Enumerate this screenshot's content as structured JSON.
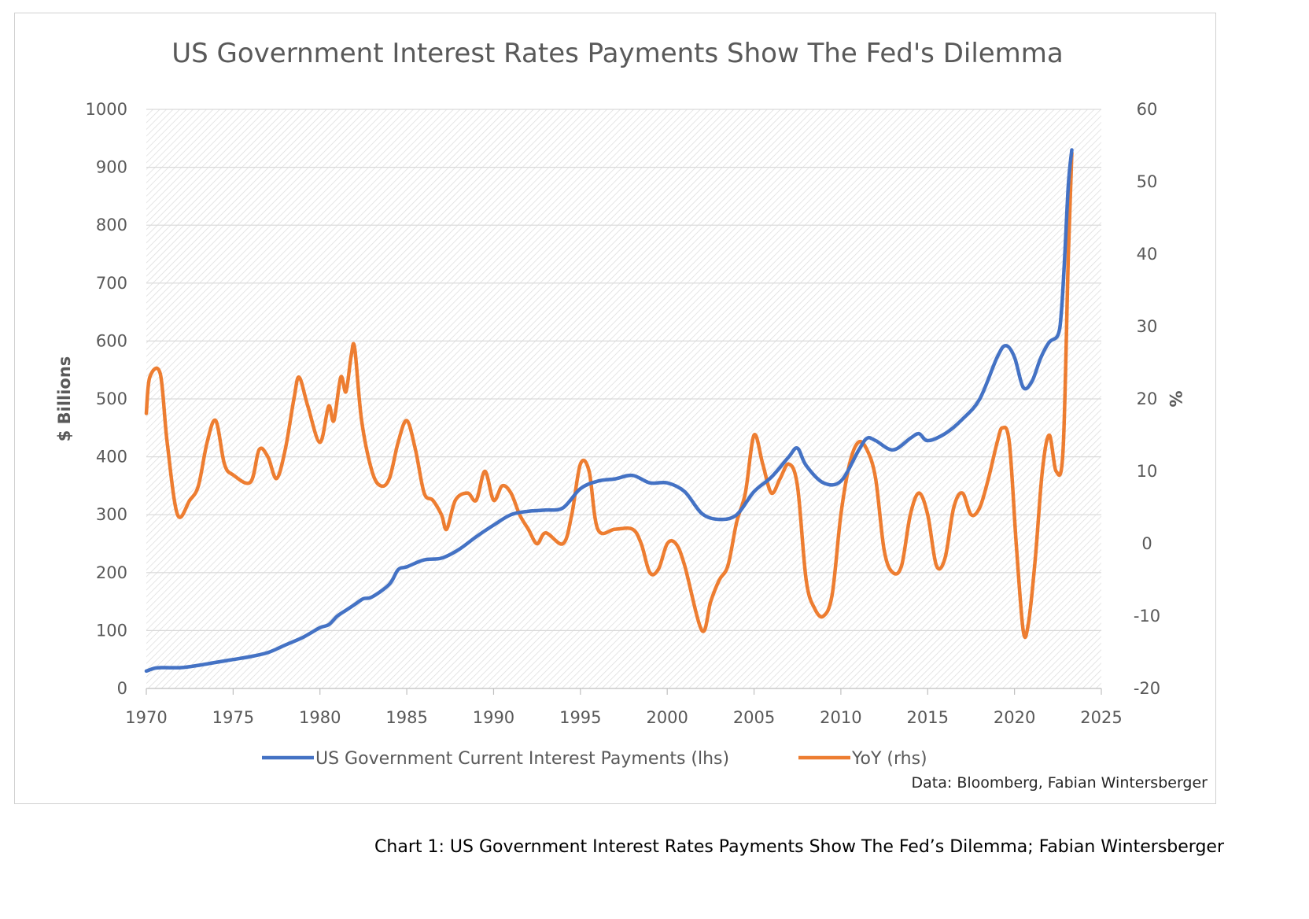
{
  "caption": "Chart 1: US Government Interest Rates Payments Show The Fed’s Dilemma; Fabian Wintersberger",
  "colors": {
    "series_lhs": "#4472C4",
    "series_rhs": "#ED7D31",
    "text": "#595959",
    "title": "#595959",
    "hatch": "#d9d9d9",
    "grid": "#d9d9d9"
  },
  "chart_data": {
    "type": "line",
    "title": "US Government Interest Rates Payments Show The Fed's Dilemma",
    "source": "Data: Bloomberg, Fabian Wintersberger",
    "xlim": [
      1970,
      2025
    ],
    "x_ticks": [
      "1970",
      "1975",
      "1980",
      "1985",
      "1990",
      "1995",
      "2000",
      "2005",
      "2010",
      "2015",
      "2020",
      "2025"
    ],
    "y_left": {
      "label": "$ Billions",
      "lim": [
        0,
        1000
      ],
      "ticks": [
        "0",
        "100",
        "200",
        "300",
        "400",
        "500",
        "600",
        "700",
        "800",
        "900",
        "1000"
      ]
    },
    "y_right": {
      "label": "%",
      "lim": [
        -20,
        60
      ],
      "ticks": [
        "-20",
        "-10",
        "0",
        "10",
        "20",
        "30",
        "40",
        "50",
        "60"
      ]
    },
    "grid": true,
    "legend_position": "bottom",
    "series": [
      {
        "name": "US Government Current Interest Payments (lhs)",
        "axis": "left",
        "color": "#4472C4",
        "points": [
          [
            1970,
            30
          ],
          [
            1970.5,
            35
          ],
          [
            1971,
            36
          ],
          [
            1972,
            36
          ],
          [
            1973,
            40
          ],
          [
            1974,
            45
          ],
          [
            1975,
            50
          ],
          [
            1976,
            55
          ],
          [
            1977,
            62
          ],
          [
            1978,
            75
          ],
          [
            1979,
            88
          ],
          [
            1980,
            105
          ],
          [
            1980.5,
            110
          ],
          [
            1981,
            125
          ],
          [
            1981.5,
            135
          ],
          [
            1982,
            145
          ],
          [
            1982.5,
            155
          ],
          [
            1983,
            158
          ],
          [
            1984,
            180
          ],
          [
            1984.5,
            205
          ],
          [
            1985,
            210
          ],
          [
            1986,
            222
          ],
          [
            1987,
            225
          ],
          [
            1988,
            240
          ],
          [
            1989,
            262
          ],
          [
            1990,
            282
          ],
          [
            1991,
            300
          ],
          [
            1992,
            306
          ],
          [
            1993,
            308
          ],
          [
            1994,
            312
          ],
          [
            1995,
            345
          ],
          [
            1996,
            358
          ],
          [
            1997,
            362
          ],
          [
            1998,
            368
          ],
          [
            1999,
            355
          ],
          [
            2000,
            355
          ],
          [
            2001,
            340
          ],
          [
            2002,
            302
          ],
          [
            2003,
            292
          ],
          [
            2004,
            300
          ],
          [
            2005,
            340
          ],
          [
            2006,
            365
          ],
          [
            2007,
            400
          ],
          [
            2007.5,
            415
          ],
          [
            2008,
            385
          ],
          [
            2009,
            355
          ],
          [
            2010,
            358
          ],
          [
            2011,
            410
          ],
          [
            2011.5,
            432
          ],
          [
            2012,
            428
          ],
          [
            2013,
            412
          ],
          [
            2014,
            432
          ],
          [
            2014.5,
            440
          ],
          [
            2015,
            428
          ],
          [
            2016,
            440
          ],
          [
            2017,
            465
          ],
          [
            2018,
            500
          ],
          [
            2019,
            572
          ],
          [
            2019.5,
            592
          ],
          [
            2020,
            572
          ],
          [
            2020.5,
            520
          ],
          [
            2021,
            530
          ],
          [
            2021.5,
            570
          ],
          [
            2022,
            598
          ],
          [
            2022.5,
            610
          ],
          [
            2022.7,
            650
          ],
          [
            2022.9,
            750
          ],
          [
            2023.1,
            870
          ],
          [
            2023.3,
            930
          ]
        ]
      },
      {
        "name": "YoY (rhs)",
        "axis": "right",
        "color": "#ED7D31",
        "points": [
          [
            1970,
            18
          ],
          [
            1970.2,
            23
          ],
          [
            1970.8,
            23.5
          ],
          [
            1971.2,
            14
          ],
          [
            1971.8,
            4
          ],
          [
            1972.5,
            6
          ],
          [
            1973,
            8
          ],
          [
            1973.5,
            14
          ],
          [
            1974,
            17
          ],
          [
            1974.5,
            11
          ],
          [
            1975,
            9.5
          ],
          [
            1976,
            8.5
          ],
          [
            1976.5,
            13
          ],
          [
            1977,
            12
          ],
          [
            1977.5,
            9
          ],
          [
            1978,
            13
          ],
          [
            1978.5,
            20
          ],
          [
            1978.8,
            23
          ],
          [
            1979.3,
            19
          ],
          [
            1980,
            14
          ],
          [
            1980.5,
            19
          ],
          [
            1980.8,
            17
          ],
          [
            1981.2,
            23
          ],
          [
            1981.5,
            21
          ],
          [
            1981.8,
            26
          ],
          [
            1982,
            27
          ],
          [
            1982.4,
            17
          ],
          [
            1983,
            10
          ],
          [
            1983.5,
            8
          ],
          [
            1984,
            9
          ],
          [
            1984.5,
            14
          ],
          [
            1985,
            17
          ],
          [
            1985.5,
            13
          ],
          [
            1986,
            7
          ],
          [
            1986.5,
            6
          ],
          [
            1987,
            4
          ],
          [
            1987.3,
            2
          ],
          [
            1987.8,
            6
          ],
          [
            1988.5,
            7
          ],
          [
            1989,
            6
          ],
          [
            1989.5,
            10
          ],
          [
            1990,
            6
          ],
          [
            1990.5,
            8
          ],
          [
            1991,
            7
          ],
          [
            1991.5,
            4
          ],
          [
            1992,
            2
          ],
          [
            1992.5,
            0
          ],
          [
            1993,
            1.5
          ],
          [
            1994,
            0
          ],
          [
            1994.5,
            4
          ],
          [
            1995,
            11
          ],
          [
            1995.5,
            10
          ],
          [
            1996,
            2
          ],
          [
            1997,
            2
          ],
          [
            1998,
            2
          ],
          [
            1998.5,
            0
          ],
          [
            1999,
            -4
          ],
          [
            1999.5,
            -3.5
          ],
          [
            2000,
            0
          ],
          [
            2000.5,
            0
          ],
          [
            2001,
            -3
          ],
          [
            2002,
            -12
          ],
          [
            2002.5,
            -8
          ],
          [
            2003,
            -5
          ],
          [
            2003.5,
            -3
          ],
          [
            2004,
            3
          ],
          [
            2004.5,
            7
          ],
          [
            2005,
            15
          ],
          [
            2005.5,
            11
          ],
          [
            2006,
            7
          ],
          [
            2006.5,
            9
          ],
          [
            2007,
            11
          ],
          [
            2007.5,
            8
          ],
          [
            2008,
            -5
          ],
          [
            2008.5,
            -9
          ],
          [
            2009,
            -10
          ],
          [
            2009.5,
            -7
          ],
          [
            2010,
            4
          ],
          [
            2010.5,
            11
          ],
          [
            2011,
            14
          ],
          [
            2011.5,
            13
          ],
          [
            2012,
            9
          ],
          [
            2012.5,
            -1
          ],
          [
            2013,
            -4
          ],
          [
            2013.5,
            -3
          ],
          [
            2014,
            4
          ],
          [
            2014.5,
            7
          ],
          [
            2015,
            4
          ],
          [
            2015.5,
            -3
          ],
          [
            2016,
            -2
          ],
          [
            2016.5,
            5
          ],
          [
            2017,
            7
          ],
          [
            2017.5,
            4
          ],
          [
            2018,
            5
          ],
          [
            2018.5,
            9
          ],
          [
            2019,
            14
          ],
          [
            2019.3,
            16
          ],
          [
            2019.7,
            14
          ],
          [
            2020.1,
            0
          ],
          [
            2020.5,
            -12
          ],
          [
            2020.8,
            -11
          ],
          [
            2021.2,
            -2
          ],
          [
            2021.6,
            10
          ],
          [
            2022,
            15
          ],
          [
            2022.4,
            10
          ],
          [
            2022.8,
            13
          ],
          [
            2023.1,
            40
          ],
          [
            2023.3,
            54
          ]
        ]
      }
    ]
  }
}
